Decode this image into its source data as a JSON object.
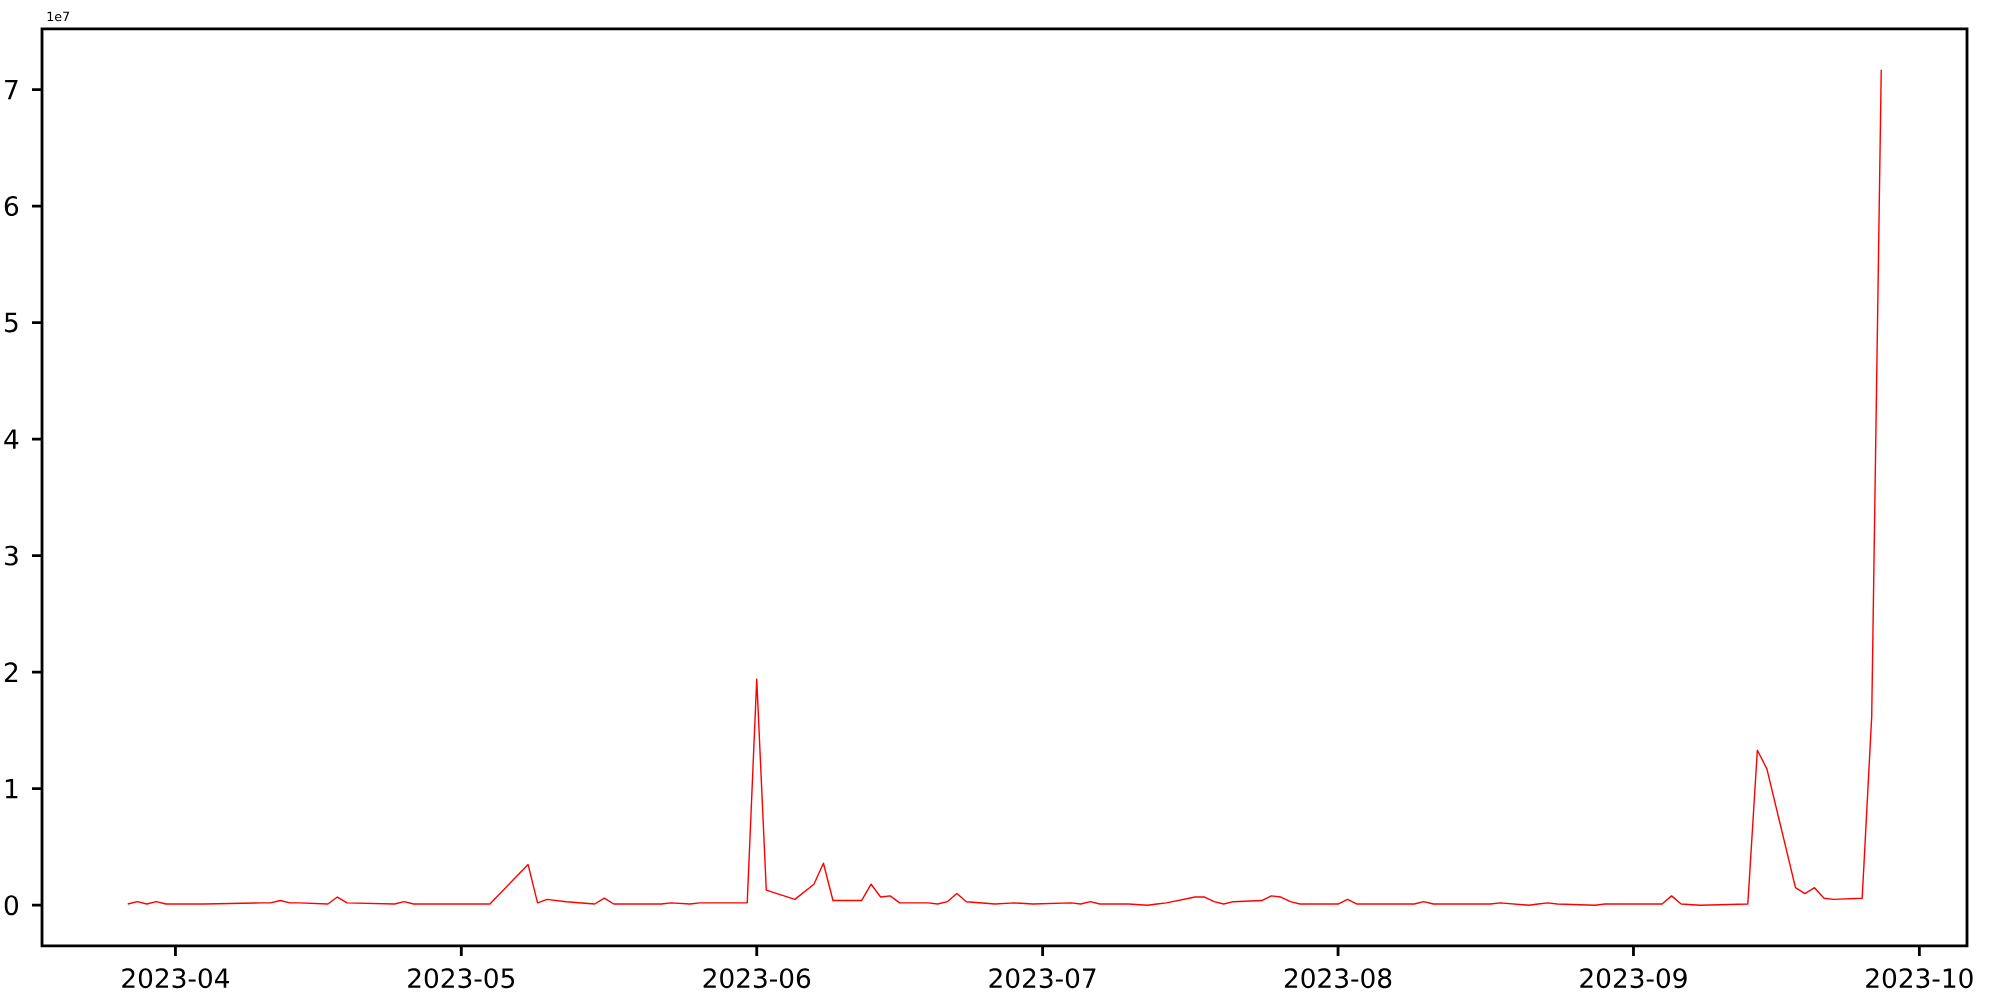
{
  "chart_data": {
    "type": "line",
    "color": "#ff0000",
    "x": [
      "2023-03-27",
      "2023-03-28",
      "2023-03-29",
      "2023-03-30",
      "2023-03-31",
      "2023-04-03",
      "2023-04-04",
      "2023-04-10",
      "2023-04-11",
      "2023-04-12",
      "2023-04-13",
      "2023-04-14",
      "2023-04-17",
      "2023-04-18",
      "2023-04-19",
      "2023-04-24",
      "2023-04-25",
      "2023-04-26",
      "2023-04-27",
      "2023-05-04",
      "2023-05-08",
      "2023-05-09",
      "2023-05-10",
      "2023-05-12",
      "2023-05-15",
      "2023-05-16",
      "2023-05-17",
      "2023-05-22",
      "2023-05-23",
      "2023-05-25",
      "2023-05-26",
      "2023-05-31",
      "2023-06-01",
      "2023-06-02",
      "2023-06-05",
      "2023-06-07",
      "2023-06-08",
      "2023-06-09",
      "2023-06-12",
      "2023-06-13",
      "2023-06-14",
      "2023-06-15",
      "2023-06-16",
      "2023-06-19",
      "2023-06-20",
      "2023-06-21",
      "2023-06-22",
      "2023-06-23",
      "2023-06-26",
      "2023-06-28",
      "2023-06-30",
      "2023-07-04",
      "2023-07-05",
      "2023-07-06",
      "2023-07-07",
      "2023-07-10",
      "2023-07-12",
      "2023-07-13",
      "2023-07-14",
      "2023-07-17",
      "2023-07-18",
      "2023-07-19",
      "2023-07-20",
      "2023-07-21",
      "2023-07-24",
      "2023-07-25",
      "2023-07-26",
      "2023-07-27",
      "2023-07-28",
      "2023-08-01",
      "2023-08-02",
      "2023-08-03",
      "2023-08-09",
      "2023-08-10",
      "2023-08-11",
      "2023-08-17",
      "2023-08-18",
      "2023-08-21",
      "2023-08-22",
      "2023-08-23",
      "2023-08-24",
      "2023-08-28",
      "2023-08-29",
      "2023-08-30",
      "2023-08-31",
      "2023-09-04",
      "2023-09-05",
      "2023-09-06",
      "2023-09-08",
      "2023-09-13",
      "2023-09-14",
      "2023-09-15",
      "2023-09-18",
      "2023-09-19",
      "2023-09-20",
      "2023-09-21",
      "2023-09-22",
      "2023-09-25",
      "2023-09-26",
      "2023-09-27"
    ],
    "values": [
      0.01,
      0.03,
      0.01,
      0.03,
      0.01,
      0.01,
      0.01,
      0.02,
      0.02,
      0.04,
      0.02,
      0.02,
      0.01,
      0.07,
      0.02,
      0.01,
      0.03,
      0.01,
      0.01,
      0.01,
      0.35,
      0.02,
      0.05,
      0.03,
      0.01,
      0.06,
      0.01,
      0.01,
      0.02,
      0.01,
      0.02,
      0.02,
      1.94,
      0.13,
      0.05,
      0.18,
      0.36,
      0.04,
      0.04,
      0.18,
      0.07,
      0.08,
      0.02,
      0.02,
      0.01,
      0.03,
      0.1,
      0.03,
      0.01,
      0.02,
      0.01,
      0.02,
      0.01,
      0.03,
      0.01,
      0.01,
      0.0,
      0.01,
      0.02,
      0.07,
      0.07,
      0.03,
      0.01,
      0.03,
      0.04,
      0.08,
      0.07,
      0.03,
      0.01,
      0.01,
      0.05,
      0.01,
      0.01,
      0.03,
      0.01,
      0.01,
      0.02,
      0.0,
      0.01,
      0.02,
      0.01,
      0.0,
      0.01,
      0.01,
      0.01,
      0.01,
      0.08,
      0.01,
      0.0,
      0.01,
      1.33,
      1.17,
      0.15,
      0.1,
      0.15,
      0.06,
      0.05,
      0.06,
      1.62,
      7.17
    ],
    "xlim": [
      "2023-03-18",
      "2023-10-06"
    ],
    "xticks": [
      "2023-04",
      "2023-05",
      "2023-06",
      "2023-07",
      "2023-08",
      "2023-09",
      "2023-10"
    ],
    "ylim": [
      -0.35,
      7.52
    ],
    "yticks": [
      0,
      1,
      2,
      3,
      4,
      5,
      6,
      7
    ],
    "annotations": [
      "1e7"
    ]
  }
}
